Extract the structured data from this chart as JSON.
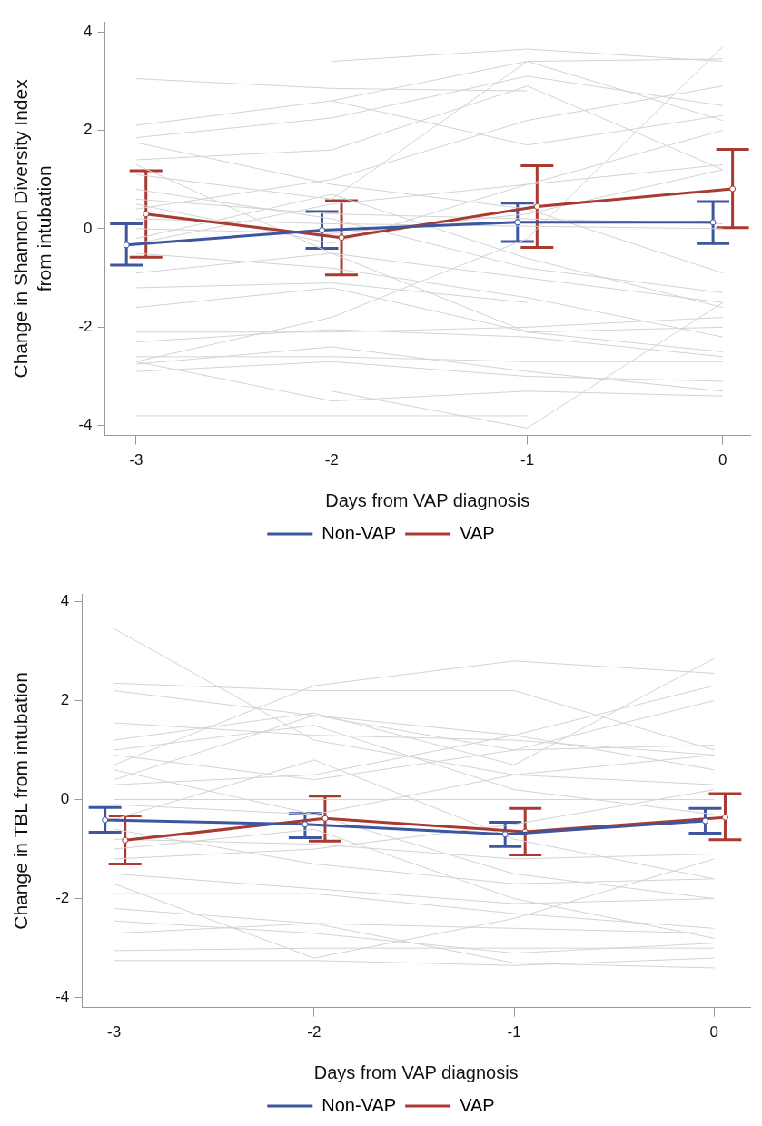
{
  "chart_data": [
    {
      "type": "line",
      "xlabel": "Days from VAP diagnosis",
      "ylabel": "Change in Shannon Diversity Index from intubation",
      "xlim": [
        -3.16,
        0.14
      ],
      "xticks": [
        -3,
        -2,
        -1,
        0
      ],
      "ylim": [
        -4.2,
        4.2
      ],
      "yticks": [
        -4,
        -2,
        0,
        2,
        4
      ],
      "legend": "bottom",
      "series": [
        {
          "color": "#d3d3d3",
          "x": [
            -3,
            -2,
            -1
          ],
          "values": [
            3.05,
            2.85,
            2.8
          ]
        },
        {
          "color": "#d3d3d3",
          "x": [
            -2,
            -1,
            0
          ],
          "values": [
            3.4,
            3.65,
            3.4
          ]
        },
        {
          "color": "#d3d3d3",
          "x": [
            -3,
            -2,
            -1,
            0
          ],
          "values": [
            2.1,
            2.6,
            3.4,
            2.2
          ]
        },
        {
          "color": "#d3d3d3",
          "x": [
            -3,
            -2,
            -1,
            0
          ],
          "values": [
            1.85,
            2.25,
            3.1,
            2.5
          ]
        },
        {
          "color": "#d3d3d3",
          "x": [
            -3,
            -2,
            -1,
            0
          ],
          "values": [
            1.4,
            1.6,
            2.9,
            1.2
          ]
        },
        {
          "color": "#d3d3d3",
          "x": [
            -3,
            -2,
            -1,
            0
          ],
          "values": [
            1.75,
            0.9,
            0.4,
            -0.9
          ]
        },
        {
          "color": "#d3d3d3",
          "x": [
            -3,
            -2,
            -1,
            0
          ],
          "values": [
            1.1,
            0.6,
            3.4,
            3.45
          ]
        },
        {
          "color": "#d3d3d3",
          "x": [
            -3,
            -2,
            -1,
            0
          ],
          "values": [
            0.6,
            0.3,
            0.2,
            0.1
          ]
        },
        {
          "color": "#d3d3d3",
          "x": [
            -3,
            -2,
            -1,
            0
          ],
          "values": [
            0.2,
            0.1,
            0.05,
            0.0
          ]
        },
        {
          "color": "#d3d3d3",
          "x": [
            -3,
            -2,
            -1,
            0
          ],
          "values": [
            0.0,
            -0.1,
            0.3,
            1.2
          ]
        },
        {
          "color": "#d3d3d3",
          "x": [
            -3,
            -2,
            -1,
            0
          ],
          "values": [
            -0.3,
            0.5,
            0.9,
            1.3
          ]
        },
        {
          "color": "#d3d3d3",
          "x": [
            -3,
            -2,
            -1,
            0
          ],
          "values": [
            -0.5,
            -0.8,
            -1.4,
            -2.2
          ]
        },
        {
          "color": "#d3d3d3",
          "x": [
            -3,
            -2,
            -1,
            0
          ],
          "values": [
            -0.9,
            -0.5,
            -1.0,
            -1.5
          ]
        },
        {
          "color": "#d3d3d3",
          "x": [
            -3,
            -2,
            -1
          ],
          "values": [
            -1.2,
            -1.1,
            -1.5
          ]
        },
        {
          "color": "#d3d3d3",
          "x": [
            -3,
            -2,
            -1,
            0
          ],
          "values": [
            -2.1,
            -2.1,
            -2.0,
            -1.8
          ]
        },
        {
          "color": "#d3d3d3",
          "x": [
            -3,
            -2,
            -1,
            0
          ],
          "values": [
            -2.3,
            -2.05,
            -2.2,
            -2.6
          ]
        },
        {
          "color": "#d3d3d3",
          "x": [
            -3,
            -2,
            -1,
            0
          ],
          "values": [
            -2.6,
            -2.6,
            -2.7,
            -2.7
          ]
        },
        {
          "color": "#d3d3d3",
          "x": [
            -3,
            -2,
            -1,
            0
          ],
          "values": [
            -2.75,
            -2.4,
            -2.9,
            -3.3
          ]
        },
        {
          "color": "#d3d3d3",
          "x": [
            -3,
            -2,
            -1,
            0
          ],
          "values": [
            -2.9,
            -2.7,
            -3.0,
            -3.1
          ]
        },
        {
          "color": "#d3d3d3",
          "x": [
            -3,
            -2,
            -1
          ],
          "values": [
            -3.8,
            -3.8,
            -3.8
          ]
        },
        {
          "color": "#d3d3d3",
          "x": [
            -3,
            -2,
            -1,
            0
          ],
          "values": [
            -2.7,
            -3.5,
            -3.3,
            -3.4
          ]
        },
        {
          "color": "#d3d3d3",
          "x": [
            -3,
            -2,
            -1,
            0
          ],
          "values": [
            -2.7,
            -1.8,
            -0.2,
            3.7
          ]
        },
        {
          "color": "#d3d3d3",
          "x": [
            -2,
            -1,
            0
          ],
          "values": [
            -3.3,
            -4.05,
            -1.5
          ]
        },
        {
          "color": "#d3d3d3",
          "x": [
            -3,
            -2,
            -1,
            0
          ],
          "values": [
            0.4,
            1.0,
            2.2,
            2.9
          ]
        },
        {
          "color": "#d3d3d3",
          "x": [
            -3,
            -2,
            -1,
            0
          ],
          "values": [
            1.3,
            -0.5,
            -2.1,
            -2.0
          ]
        },
        {
          "color": "#d3d3d3",
          "x": [
            -3,
            -2,
            -1,
            0
          ],
          "values": [
            0.8,
            0.2,
            -0.8,
            -1.3
          ]
        },
        {
          "color": "#d3d3d3",
          "x": [
            -3,
            -2,
            -1,
            0
          ],
          "values": [
            -0.2,
            0.7,
            -0.6,
            -1.6
          ]
        },
        {
          "color": "#d3d3d3",
          "x": [
            -3,
            -2,
            -1,
            0
          ],
          "values": [
            0.5,
            -0.3,
            0.9,
            2.0
          ]
        },
        {
          "color": "#d3d3d3",
          "x": [
            -2,
            -1,
            0
          ],
          "values": [
            2.6,
            1.7,
            2.3
          ]
        },
        {
          "color": "#d3d3d3",
          "x": [
            -3,
            -2,
            -1,
            0
          ],
          "values": [
            -1.6,
            -1.2,
            -2.1,
            -2.5
          ]
        },
        {
          "name": "Non-VAP",
          "color": "#3e56a0",
          "marker": "circle",
          "x": [
            -3.05,
            -2.05,
            -1.05,
            -0.05
          ],
          "values": [
            -0.33,
            -0.03,
            0.13,
            0.13
          ],
          "errors": [
            [
              -0.74,
              0.1
            ],
            [
              -0.4,
              0.35
            ],
            [
              -0.26,
              0.52
            ],
            [
              -0.3,
              0.55
            ]
          ]
        },
        {
          "name": "VAP",
          "color": "#a83a32",
          "marker": "circle",
          "x": [
            -2.95,
            -1.95,
            -0.95,
            0.05
          ],
          "values": [
            0.3,
            -0.18,
            0.45,
            0.81
          ],
          "errors": [
            [
              -0.58,
              1.18
            ],
            [
              -0.94,
              0.57
            ],
            [
              -0.38,
              1.28
            ],
            [
              0.02,
              1.61
            ]
          ]
        }
      ]
    },
    {
      "type": "line",
      "xlabel": "Days from VAP diagnosis",
      "ylabel": "Change in TBL from intubation",
      "xlim": [
        -3.16,
        0.18
      ],
      "xticks": [
        -3,
        -2,
        -1,
        0
      ],
      "ylim": [
        -4.2,
        4.15
      ],
      "yticks": [
        -4,
        -2,
        0,
        2,
        4
      ],
      "legend": "bottom",
      "series": [
        {
          "color": "#d3d3d3",
          "x": [
            -3,
            -2,
            -1,
            0
          ],
          "values": [
            3.45,
            1.2,
            0.5,
            0.3
          ]
        },
        {
          "color": "#d3d3d3",
          "x": [
            -3,
            -2,
            -1,
            0
          ],
          "values": [
            2.35,
            2.2,
            2.2,
            1.0
          ]
        },
        {
          "color": "#d3d3d3",
          "x": [
            -3,
            -2,
            -1,
            0
          ],
          "values": [
            2.2,
            1.7,
            1.0,
            2.0
          ]
        },
        {
          "color": "#d3d3d3",
          "x": [
            -3,
            -2,
            -1,
            0
          ],
          "values": [
            1.55,
            1.3,
            1.2,
            0.9
          ]
        },
        {
          "color": "#d3d3d3",
          "x": [
            -3,
            -2,
            -1,
            0
          ],
          "values": [
            1.2,
            1.75,
            0.7,
            2.85
          ]
        },
        {
          "color": "#d3d3d3",
          "x": [
            -3,
            -2,
            -1,
            0
          ],
          "values": [
            0.7,
            2.3,
            2.8,
            2.55
          ]
        },
        {
          "color": "#d3d3d3",
          "x": [
            -3,
            -2,
            -1,
            0
          ],
          "values": [
            0.3,
            0.5,
            1.3,
            2.3
          ]
        },
        {
          "color": "#d3d3d3",
          "x": [
            -3,
            -2,
            -1,
            0
          ],
          "values": [
            0.0,
            0.0,
            0.0,
            0.0
          ]
        },
        {
          "color": "#d3d3d3",
          "x": [
            -3,
            -2,
            -1,
            0
          ],
          "values": [
            -0.1,
            -0.3,
            0.5,
            0.9
          ]
        },
        {
          "color": "#d3d3d3",
          "x": [
            -3,
            -2,
            -1,
            0
          ],
          "values": [
            -0.4,
            0.8,
            -0.8,
            -1.6
          ]
        },
        {
          "color": "#d3d3d3",
          "x": [
            -3,
            -2,
            -1,
            0
          ],
          "values": [
            -0.8,
            -0.9,
            -1.2,
            -1.1
          ]
        },
        {
          "color": "#d3d3d3",
          "x": [
            -3,
            -2,
            -1,
            0
          ],
          "values": [
            -1.2,
            -1.0,
            -0.5,
            0.2
          ]
        },
        {
          "color": "#d3d3d3",
          "x": [
            -3,
            -2,
            -1,
            0
          ],
          "values": [
            -1.5,
            -1.8,
            -2.1,
            -2.0
          ]
        },
        {
          "color": "#d3d3d3",
          "x": [
            -3,
            -2,
            -1,
            0
          ],
          "values": [
            -1.9,
            -1.9,
            -2.3,
            -2.6
          ]
        },
        {
          "color": "#d3d3d3",
          "x": [
            -3,
            -2,
            -1,
            0
          ],
          "values": [
            -2.2,
            -2.5,
            -3.3,
            -3.4
          ]
        },
        {
          "color": "#d3d3d3",
          "x": [
            -3,
            -2,
            -1,
            0
          ],
          "values": [
            -2.45,
            -2.7,
            -3.1,
            -2.9
          ]
        },
        {
          "color": "#d3d3d3",
          "x": [
            -3,
            -2,
            -1,
            0
          ],
          "values": [
            -2.7,
            -2.5,
            -2.6,
            -2.7
          ]
        },
        {
          "color": "#d3d3d3",
          "x": [
            -3,
            -2,
            -1,
            0
          ],
          "values": [
            -3.05,
            -3.0,
            -3.0,
            -3.0
          ]
        },
        {
          "color": "#d3d3d3",
          "x": [
            -3,
            -2,
            -1,
            0
          ],
          "values": [
            -3.25,
            -3.25,
            -3.35,
            -3.2
          ]
        },
        {
          "color": "#d3d3d3",
          "x": [
            -3,
            -2,
            -1,
            0
          ],
          "values": [
            0.6,
            -0.3,
            -1.5,
            -2.0
          ]
        },
        {
          "color": "#d3d3d3",
          "x": [
            -3,
            -2,
            -1,
            0
          ],
          "values": [
            0.9,
            0.4,
            1.0,
            1.1
          ]
        },
        {
          "color": "#d3d3d3",
          "x": [
            -3,
            -2,
            -1,
            0
          ],
          "values": [
            -0.6,
            -1.3,
            -1.7,
            -1.6
          ]
        },
        {
          "color": "#d3d3d3",
          "x": [
            -3,
            -2,
            -1,
            0
          ],
          "values": [
            1.0,
            1.5,
            0.2,
            -0.3
          ]
        },
        {
          "color": "#d3d3d3",
          "x": [
            -3,
            -2,
            -1,
            0
          ],
          "values": [
            -1.7,
            -3.2,
            -2.4,
            -1.2
          ]
        },
        {
          "color": "#d3d3d3",
          "x": [
            -3,
            -2,
            -1,
            0
          ],
          "values": [
            0.4,
            1.7,
            1.3,
            0.6
          ]
        },
        {
          "color": "#d3d3d3",
          "x": [
            -3,
            -2,
            -1,
            0
          ],
          "values": [
            -1.0,
            -0.6,
            -2.0,
            -2.8
          ]
        },
        {
          "name": "Non-VAP",
          "color": "#3e56a0",
          "marker": "circle",
          "x": [
            -3.045,
            -2.045,
            -1.045,
            -0.045
          ],
          "values": [
            -0.41,
            -0.5,
            -0.7,
            -0.43
          ],
          "errors": [
            [
              -0.66,
              -0.16
            ],
            [
              -0.77,
              -0.28
            ],
            [
              -0.95,
              -0.46
            ],
            [
              -0.68,
              -0.18
            ]
          ]
        },
        {
          "name": "VAP",
          "color": "#a83a32",
          "marker": "circle",
          "x": [
            -2.945,
            -1.945,
            -0.945,
            0.055
          ],
          "values": [
            -0.82,
            -0.38,
            -0.65,
            -0.36
          ],
          "errors": [
            [
              -1.3,
              -0.33
            ],
            [
              -0.84,
              0.07
            ],
            [
              -1.12,
              -0.18
            ],
            [
              -0.81,
              0.12
            ]
          ]
        }
      ]
    }
  ]
}
